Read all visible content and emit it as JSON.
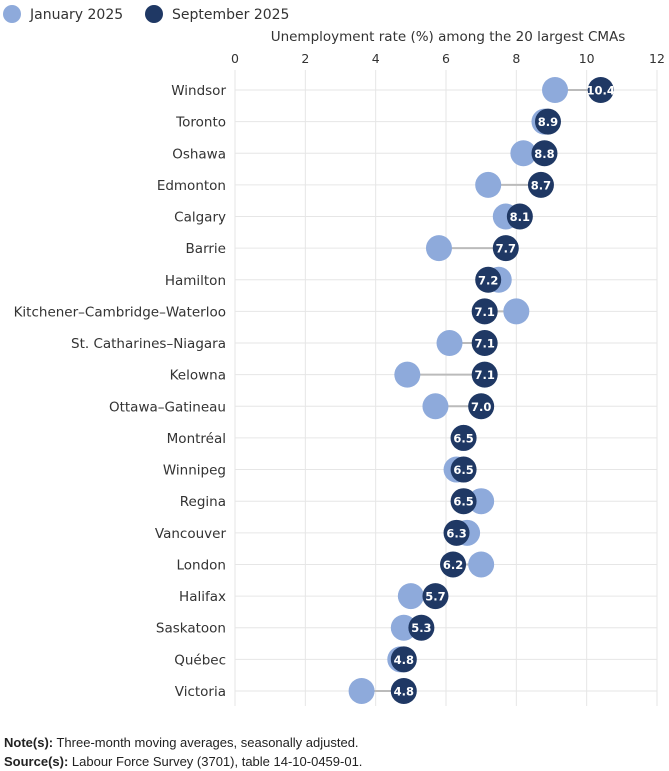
{
  "chart_data": {
    "type": "dumbbell",
    "title": "Unemployment rate (%) among the 20 largest CMAs",
    "xlim": [
      0,
      12
    ],
    "xticks": [
      "0",
      "2",
      "4",
      "6",
      "8",
      "10",
      "12"
    ],
    "grid": true,
    "legend_position": "top-left",
    "colors": {
      "January 2025": "#8eaadb",
      "September 2025": "#1f3864",
      "connector": "#bbbbbb"
    },
    "categories": [
      "Windsor",
      "Toronto",
      "Oshawa",
      "Edmonton",
      "Calgary",
      "Barrie",
      "Hamilton",
      "Kitchener–Cambridge–Waterloo",
      "St. Catharines–Niagara",
      "Kelowna",
      "Ottawa–Gatineau",
      "Montréal",
      "Winnipeg",
      "Regina",
      "Vancouver",
      "London",
      "Halifax",
      "Saskatoon",
      "Québec",
      "Victoria"
    ],
    "series": [
      {
        "name": "January 2025",
        "values": [
          9.1,
          8.8,
          8.2,
          7.2,
          7.7,
          5.8,
          7.5,
          8.0,
          6.1,
          4.9,
          5.7,
          6.5,
          6.3,
          7.0,
          6.6,
          7.0,
          5.0,
          4.8,
          4.7,
          3.6
        ]
      },
      {
        "name": "September 2025",
        "values": [
          10.4,
          8.9,
          8.8,
          8.7,
          8.1,
          7.7,
          7.2,
          7.1,
          7.1,
          7.1,
          7.0,
          6.5,
          6.5,
          6.5,
          6.3,
          6.2,
          5.7,
          5.3,
          4.8,
          4.8
        ]
      }
    ],
    "data_labels": [
      "10.4",
      "8.9",
      "8.8",
      "8.7",
      "8.1",
      "7.7",
      "7.2",
      "7.1",
      "7.1",
      "7.1",
      "7.0",
      "6.5",
      "6.5",
      "6.5",
      "6.3",
      "6.2",
      "5.7",
      "5.3",
      "4.8",
      "4.8"
    ]
  },
  "notes": {
    "note_label": "Note(s):",
    "note_text": " Three-month moving averages, seasonally adjusted.",
    "source_label": "Source(s):",
    "source_text": " Labour Force Survey (3701), table 14-10-0459-01."
  }
}
